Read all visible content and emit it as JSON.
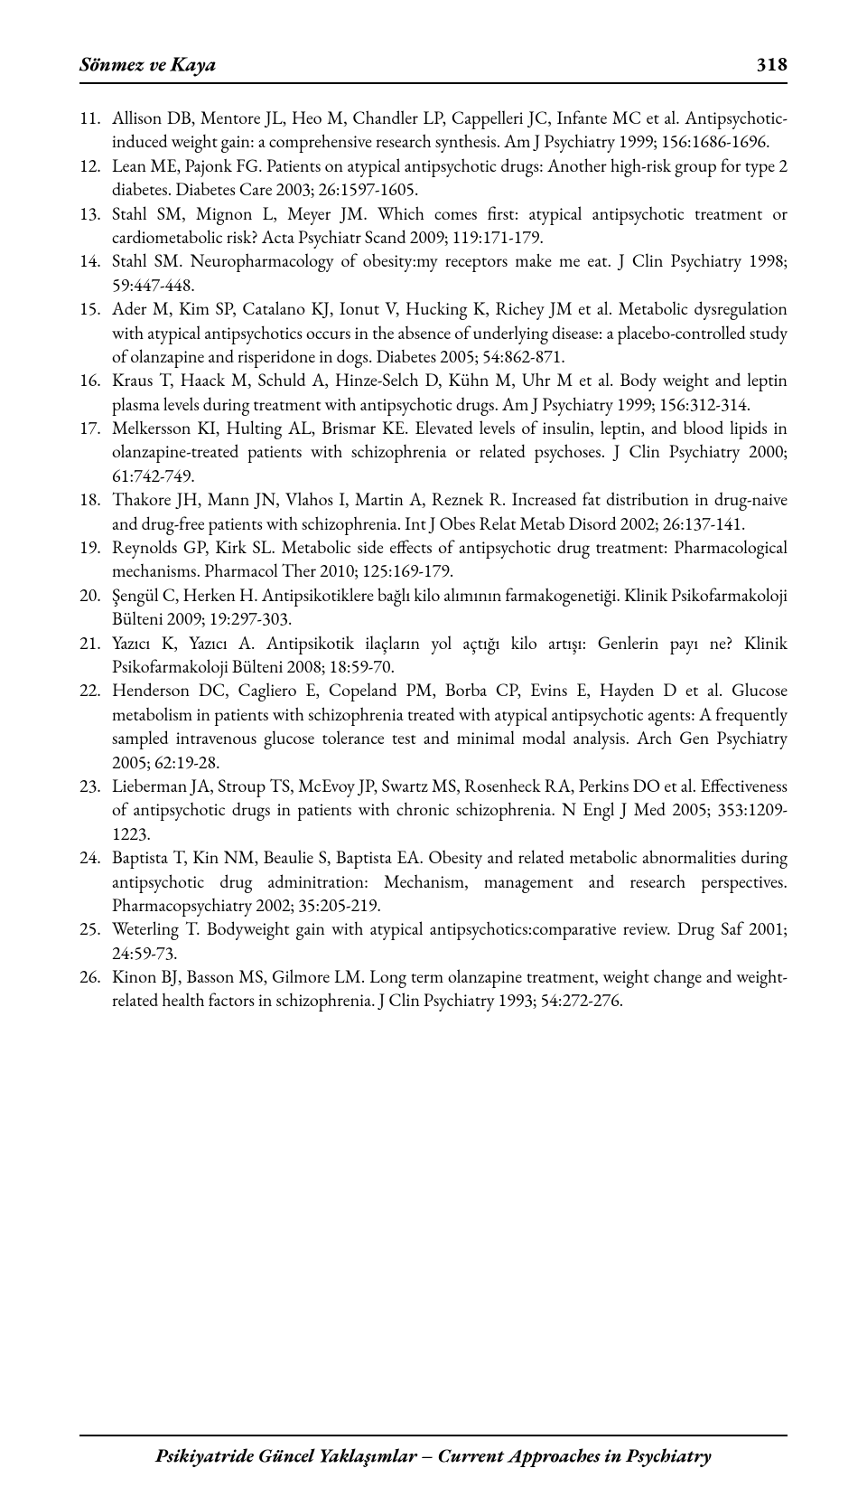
{
  "header": {
    "title": "Sönmez ve Kaya",
    "page": "318"
  },
  "references": [
    {
      "text": "Allison DB, Mentore JL, Heo M, Chandler LP, Cappelleri JC, Infante MC et al. Antipsychotic-induced weight gain: a comprehensive research synthesis. Am J Psychiatry 1999; 156:1686-1696."
    },
    {
      "text": "Lean ME, Pajonk FG. Patients on atypical antipsychotic drugs: Another high-risk group for type 2 diabetes. Diabetes Care 2003; 26:1597-1605."
    },
    {
      "text": "Stahl SM, Mignon L, Meyer JM. Which comes first: atypical antipsychotic treatment or cardiometabolic risk? Acta Psychiatr Scand 2009; 119:171-179."
    },
    {
      "text": "Stahl SM. Neuropharmacology of obesity:my receptors make me eat. J Clin Psychiatry 1998; 59:447-448."
    },
    {
      "text": "Ader M, Kim SP, Catalano KJ, Ionut V, Hucking K, Richey JM et al. Metabolic dysregulation with atypical antipsychotics occurs in the absence of underlying disease: a placebo-controlled study of olanzapine and risperidone in dogs. Diabetes 2005; 54:862-871."
    },
    {
      "text": "Kraus T, Haack M, Schuld A, Hinze-Selch D, Kühn M, Uhr M et al. Body weight and leptin plasma levels during treatment with antipsychotic drugs. Am J Psychiatry 1999; 156:312-314."
    },
    {
      "text": "Melkersson KI, Hulting AL, Brismar KE. Elevated levels of insulin, leptin, and blood lipids in olanzapine-treated patients with schizophrenia or related psychoses. J Clin Psychiatry 2000; 61:742-749."
    },
    {
      "text": "Thakore JH, Mann JN, Vlahos I, Martin A, Reznek R. Increased fat distribution in drug-naive and drug-free patients with schizophrenia. Int J Obes Relat Metab Disord 2002; 26:137-141."
    },
    {
      "text": "Reynolds GP, Kirk SL. Metabolic side effects of antipsychotic drug treatment: Pharmacological mechanisms. Pharmacol Ther 2010; 125:169-179."
    },
    {
      "text": "Şengül C, Herken H. Antipsikotiklere bağlı kilo alımının farmakogenetiği. Klinik Psikofarmakoloji Bülteni 2009; 19:297-303."
    },
    {
      "text": "Yazıcı K, Yazıcı A. Antipsikotik ilaçların yol açtığı kilo artışı: Genlerin payı ne? Klinik Psikofarmakoloji Bülteni 2008; 18:59-70."
    },
    {
      "text": "Henderson DC, Cagliero E, Copeland PM, Borba CP, Evins E, Hayden D et al. Glucose metabolism in patients with schizophrenia treated with atypical antipsychotic agents: A frequently sampled intravenous glucose tolerance test and minimal modal analysis. Arch Gen Psychiatry 2005; 62:19-28."
    },
    {
      "text": "Lieberman JA, Stroup TS, McEvoy JP, Swartz MS, Rosenheck RA, Perkins DO et al. Effectiveness of antipsychotic drugs in patients with chronic schizophrenia. N Engl J Med 2005; 353:1209-1223."
    },
    {
      "text": "Baptista T, Kin NM, Beaulie S, Baptista EA. Obesity and related metabolic abnormalities during antipsychotic drug adminitration: Mechanism, management and research perspectives. Pharmacopsychiatry 2002; 35:205-219."
    },
    {
      "text": "Weterling T. Bodyweight gain with atypical antipsychotics:comparative review. Drug Saf 2001; 24:59-73."
    },
    {
      "text": "Kinon BJ, Basson MS, Gilmore LM. Long term olanzapine treatment, weight change and weight-related health factors in schizophrenia. J Clin Psychiatry 1993; 54:272-276."
    }
  ],
  "footer": {
    "text": "Psikiyatride Güncel Yaklaşımlar – Current Approaches in Psychiatry"
  }
}
